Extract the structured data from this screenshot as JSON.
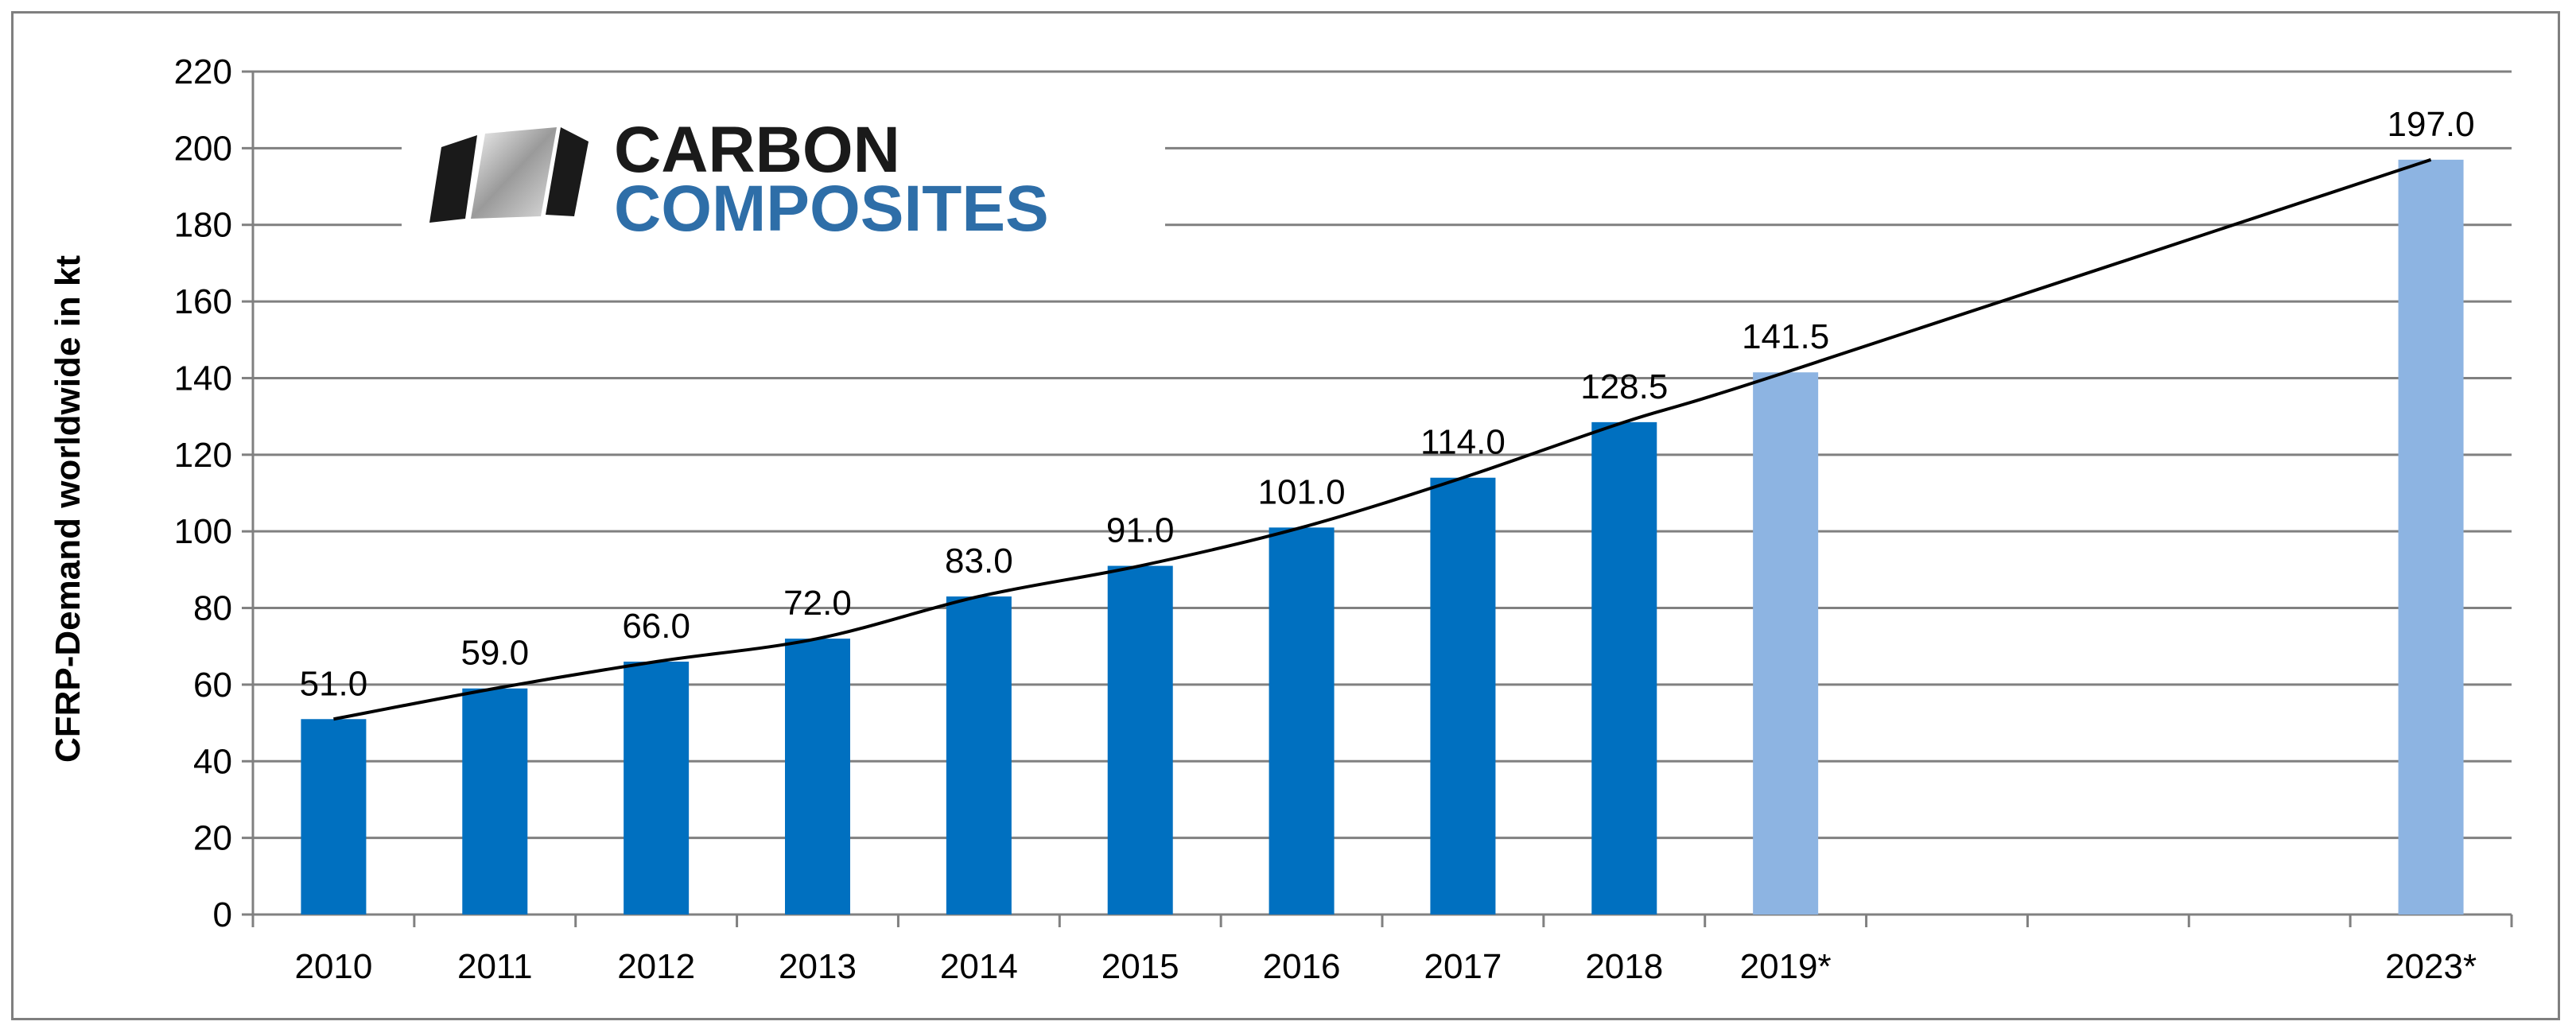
{
  "chart_data": {
    "type": "bar",
    "categories": [
      "2010",
      "2011",
      "2012",
      "2013",
      "2014",
      "2015",
      "2016",
      "2017",
      "2018",
      "2019*",
      "2023*"
    ],
    "values": [
      51.0,
      59.0,
      66.0,
      72.0,
      83.0,
      91.0,
      101.0,
      114.0,
      128.5,
      141.5,
      197.0
    ],
    "data_labels": [
      "51.0",
      "59.0",
      "66.0",
      "72.0",
      "83.0",
      "91.0",
      "101.0",
      "114.0",
      "128.5",
      "141.5",
      "197.0"
    ],
    "forecast": [
      false,
      false,
      false,
      false,
      false,
      false,
      false,
      false,
      false,
      true,
      true
    ],
    "category_slots": [
      0,
      1,
      2,
      3,
      4,
      5,
      6,
      7,
      8,
      9,
      13
    ],
    "slot_count": 14,
    "ylabel": "CFRP-Demand worldwide in kt",
    "ylim": [
      0,
      220
    ],
    "yticks": [
      0,
      20,
      40,
      60,
      80,
      100,
      120,
      140,
      160,
      180,
      200,
      220
    ],
    "grid": true,
    "trendline": true,
    "colors": {
      "actual": "#0070C0",
      "forecast": "#8DB4E2",
      "grid": "#808080",
      "trend": "#000000"
    }
  },
  "logo": {
    "line1": "CARBON",
    "line2": "COMPOSITES",
    "line1_color": "#1a1a1a",
    "line2_color": "#2E6EA8"
  }
}
